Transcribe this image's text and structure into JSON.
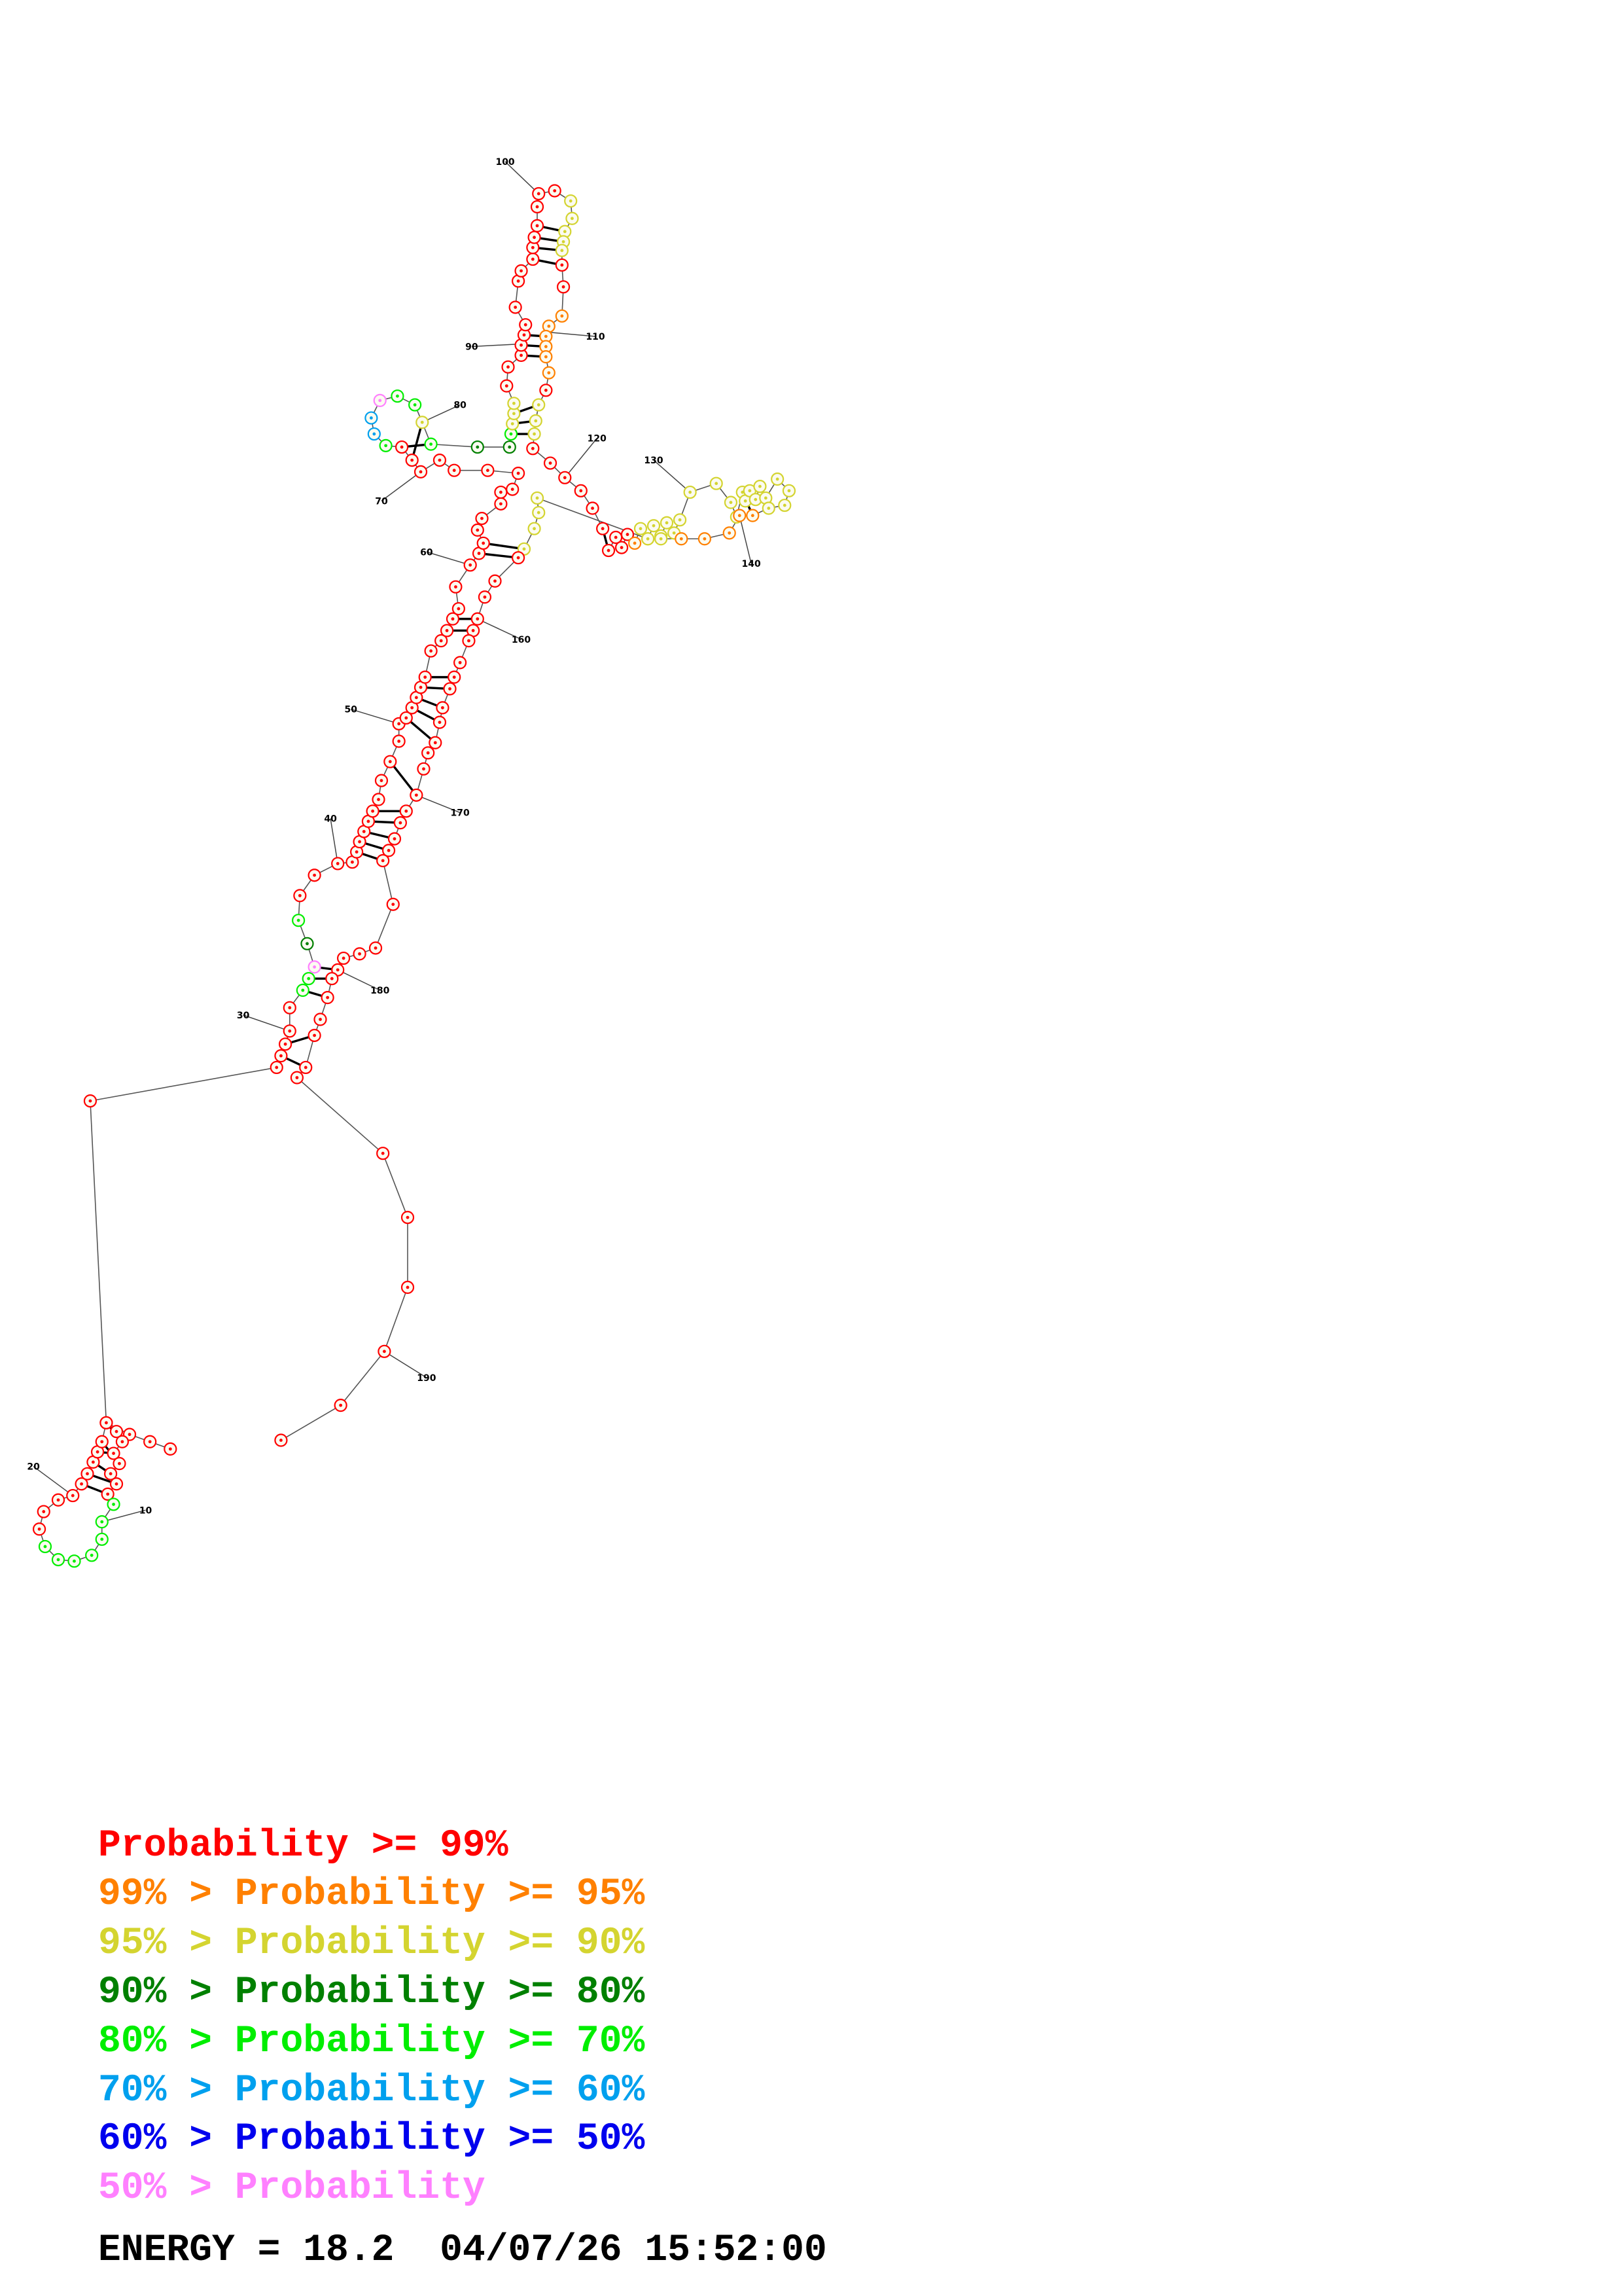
{
  "structure": {
    "tick_labels": [
      "10",
      "20",
      "30",
      "40",
      "50",
      "60",
      "70",
      "80",
      "90",
      "100",
      "110",
      "120",
      "130",
      "140",
      "160",
      "170",
      "180",
      "190"
    ]
  },
  "legend": {
    "prefix": [
      "",
      "99% > ",
      "95% > ",
      "90% > ",
      "80% > ",
      "70% > ",
      "60% > ",
      "50% > "
    ],
    "label": [
      "Probability >= 99%",
      "Probability >= 95%",
      "Probability >= 90%",
      "Probability >= 80%",
      "Probability >= 70%",
      "Probability >= 60%",
      "Probability >= 50%",
      "Probability"
    ],
    "colors": [
      "#ff0000",
      "#ff8000",
      "#d4d430",
      "#008000",
      "#00ee00",
      "#00a0ee",
      "#0000ee",
      "#ff80ff"
    ],
    "energy_line": "ENERGY = 18.2  04/07/26 15:52:00"
  }
}
